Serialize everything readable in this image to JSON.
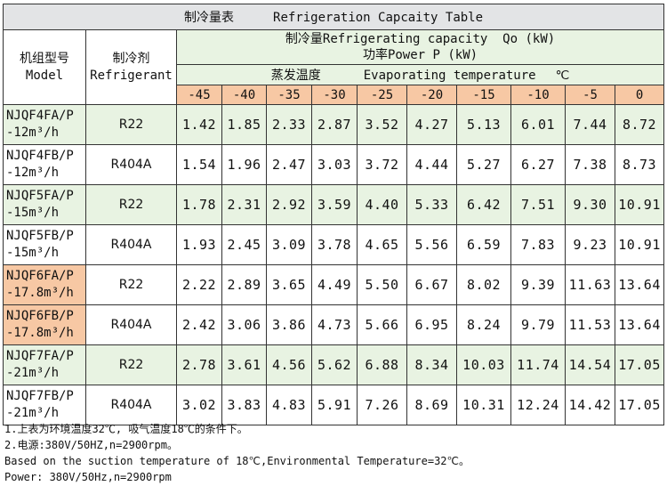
{
  "title": {
    "zh": "制冷量表",
    "en": "Refrigeration Capcaity Table"
  },
  "headers": {
    "model_zh": "机组型号",
    "model_en": "Model",
    "refrigerant_zh": "制冷剂",
    "refrigerant_en": "Refrigerant",
    "capacity_line1": "制冷量Refrigerating capacity  Qo (kW)",
    "capacity_line2": "功率Power P (kW)",
    "evap_zh": "蒸发温度",
    "evap_en": "Evaporating temperature",
    "degree_unit": "℃"
  },
  "temperatures": [
    "-45",
    "-40",
    "-35",
    "-30",
    "-25",
    "-20",
    "-15",
    "-10",
    "-5",
    "0"
  ],
  "rows": [
    {
      "model_l1": "NJQF4FA/P",
      "model_l2": "-12m³/h",
      "refrigerant": "R22",
      "values": [
        "1.42",
        "1.85",
        "2.33",
        "2.87",
        "3.52",
        "4.27",
        "5.13",
        "6.01",
        "7.44",
        "8.72"
      ]
    },
    {
      "model_l1": "NJQF4FB/P",
      "model_l2": "-12m³/h",
      "refrigerant": "R404A",
      "values": [
        "1.54",
        "1.96",
        "2.47",
        "3.03",
        "3.72",
        "4.44",
        "5.27",
        "6.27",
        "7.38",
        "8.73"
      ]
    },
    {
      "model_l1": "NJQF5FA/P",
      "model_l2": "-15m³/h",
      "refrigerant": "R22",
      "values": [
        "1.78",
        "2.31",
        "2.92",
        "3.59",
        "4.40",
        "5.33",
        "6.42",
        "7.51",
        "9.30",
        "10.91"
      ]
    },
    {
      "model_l1": "NJQF5FB/P",
      "model_l2": "-15m³/h",
      "refrigerant": "R404A",
      "values": [
        "1.93",
        "2.45",
        "3.09",
        "3.78",
        "4.65",
        "5.56",
        "6.59",
        "7.83",
        "9.23",
        "10.91"
      ]
    },
    {
      "model_l1": "NJQF6FA/P",
      "model_l2": "-17.8m³/h",
      "refrigerant": "R22",
      "values": [
        "2.22",
        "2.89",
        "3.65",
        "4.49",
        "5.50",
        "6.67",
        "8.02",
        "9.39",
        "11.63",
        "13.64"
      ]
    },
    {
      "model_l1": "NJQF6FB/P",
      "model_l2": "-17.8m³/h",
      "refrigerant": "R404A",
      "values": [
        "2.42",
        "3.06",
        "3.86",
        "4.73",
        "5.66",
        "6.95",
        "8.24",
        "9.79",
        "11.53",
        "13.64"
      ]
    },
    {
      "model_l1": "NJQF7FA/P",
      "model_l2": "-21m³/h",
      "refrigerant": "R22",
      "values": [
        "2.78",
        "3.61",
        "4.56",
        "5.62",
        "6.88",
        "8.34",
        "10.03",
        "11.74",
        "14.54",
        "17.05"
      ]
    },
    {
      "model_l1": "NJQF7FB/P",
      "model_l2": "-21m³/h",
      "refrigerant": "R404A",
      "values": [
        "3.02",
        "3.83",
        "4.83",
        "5.91",
        "7.26",
        "8.69",
        "10.31",
        "12.24",
        "14.42",
        "17.05"
      ]
    }
  ],
  "notes": [
    "1.上表为环境温度32℃, 吸气温度18℃的条件下。",
    "2.电源:380V/50HZ,n=2900rpm。",
    "Based on the suction temperature of 18℃,Environmental Temperature=32℃。",
    "Power: 380V/50Hz,n=2900rpm"
  ],
  "colors": {
    "title_bg": "#e3e4e6",
    "header_bg": "#e8f3e2",
    "highlight": "#f7c8a4"
  }
}
